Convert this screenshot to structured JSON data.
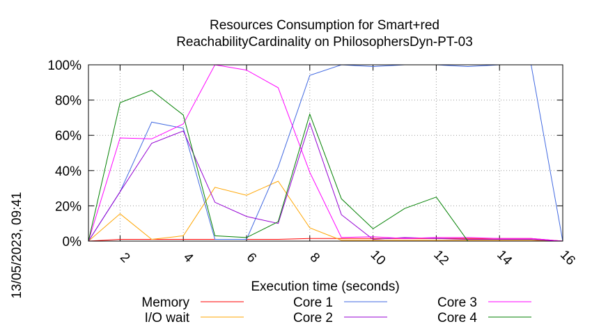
{
  "side_text": "13/05/2023, 09:41",
  "chart_data": {
    "type": "line",
    "title": "Resources Consumption for Smart+red",
    "subtitle": "ReachabilityCardinality on PhilosophersDyn-PT-03",
    "xlabel": "Execution time (seconds)",
    "ylabel": "",
    "xlim": [
      1,
      16
    ],
    "ylim": [
      0,
      100
    ],
    "x_ticks": [
      2,
      4,
      6,
      8,
      10,
      12,
      14,
      16
    ],
    "y_ticks": [
      0,
      20,
      40,
      60,
      80,
      100
    ],
    "y_tick_labels": [
      "0%",
      "20%",
      "40%",
      "60%",
      "80%",
      "100%"
    ],
    "grid": true,
    "legend_position": "bottom",
    "x": [
      1,
      2,
      3,
      4,
      5,
      6,
      7,
      8,
      9,
      10,
      11,
      12,
      13,
      14,
      15,
      16
    ],
    "series": [
      {
        "name": "Memory",
        "color": "#ff0000",
        "values": [
          0,
          1,
          1,
          1,
          1,
          1,
          1,
          1.5,
          1.5,
          1.5,
          1.5,
          1.5,
          1.5,
          1.5,
          1.5,
          0
        ]
      },
      {
        "name": "I/O wait",
        "color": "#ffa500",
        "values": [
          0,
          15.5,
          1,
          3,
          30.5,
          26,
          34,
          7.5,
          0.5,
          0.5,
          0.5,
          0.5,
          0.5,
          0.5,
          0.5,
          0
        ]
      },
      {
        "name": "Core 1",
        "color": "#4169e1",
        "values": [
          0,
          28,
          67.5,
          64,
          1,
          1,
          42,
          94,
          100,
          99,
          100,
          100,
          99,
          100,
          100,
          0
        ]
      },
      {
        "name": "Core 2",
        "color": "#9400d3",
        "values": [
          0,
          28,
          55.5,
          62.5,
          22,
          14,
          10,
          67,
          15,
          1,
          2,
          1.5,
          1,
          1,
          1,
          0
        ]
      },
      {
        "name": "Core 3",
        "color": "#ff00ff",
        "values": [
          0,
          58.5,
          58,
          66.5,
          100,
          97,
          87,
          39,
          2,
          2.5,
          1.5,
          2,
          2,
          1.5,
          1.5,
          0
        ]
      },
      {
        "name": "Core 4",
        "color": "#008000",
        "values": [
          0,
          78.5,
          85.5,
          71.5,
          3,
          2,
          11,
          72,
          24,
          7,
          18.5,
          25,
          0,
          0,
          0,
          0
        ]
      }
    ]
  }
}
